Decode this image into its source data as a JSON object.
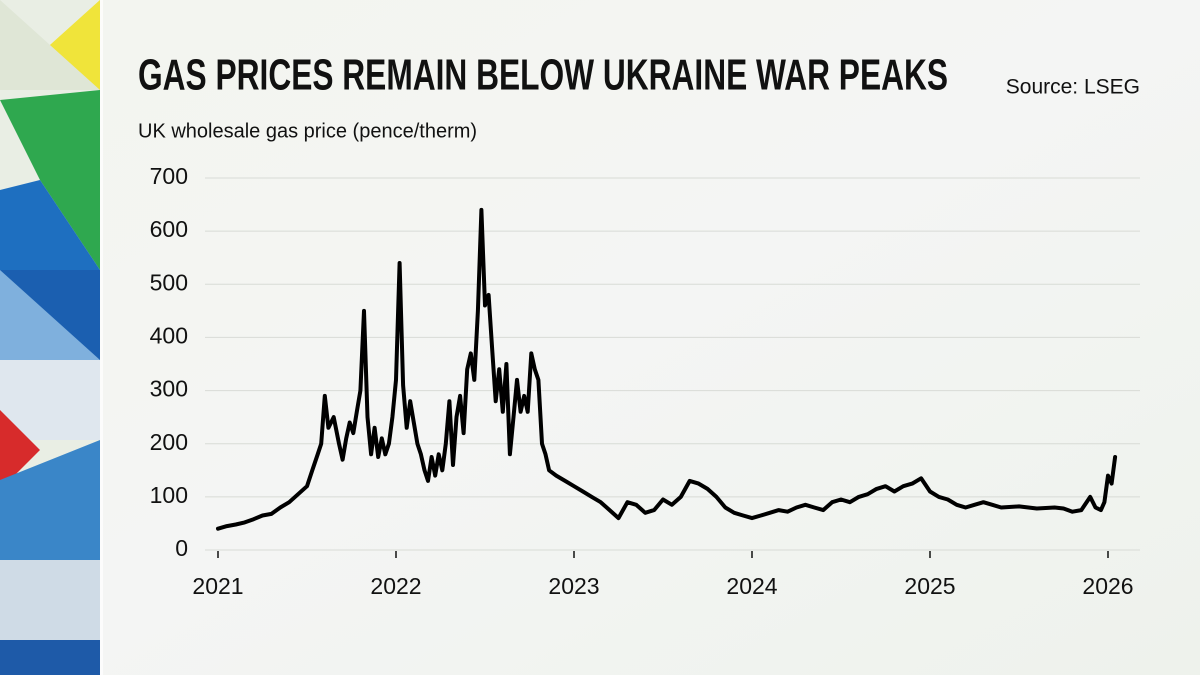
{
  "chart_data": {
    "type": "line",
    "title": "GAS PRICES REMAIN BELOW UKRAINE WAR PEAKS",
    "subtitle": "UK wholesale gas price (pence/therm)",
    "source": "Source: LSEG",
    "xlim": [
      2021,
      2026
    ],
    "xticks": [
      2021,
      2022,
      2023,
      2024,
      2025,
      2026
    ],
    "ylim": [
      0,
      700
    ],
    "yticks": [
      0,
      100,
      200,
      300,
      400,
      500,
      600,
      700
    ],
    "grid": true,
    "series": [
      {
        "color": "#000000",
        "x": [
          2021.0,
          2021.05,
          2021.1,
          2021.15,
          2021.2,
          2021.25,
          2021.3,
          2021.35,
          2021.4,
          2021.45,
          2021.5,
          2021.53,
          2021.56,
          2021.58,
          2021.6,
          2021.62,
          2021.65,
          2021.68,
          2021.7,
          2021.72,
          2021.74,
          2021.76,
          2021.78,
          2021.8,
          2021.82,
          2021.84,
          2021.86,
          2021.88,
          2021.9,
          2021.92,
          2021.94,
          2021.96,
          2021.98,
          2022.0,
          2022.02,
          2022.04,
          2022.06,
          2022.08,
          2022.1,
          2022.12,
          2022.14,
          2022.16,
          2022.18,
          2022.2,
          2022.22,
          2022.24,
          2022.26,
          2022.28,
          2022.3,
          2022.32,
          2022.34,
          2022.36,
          2022.38,
          2022.4,
          2022.42,
          2022.44,
          2022.46,
          2022.48,
          2022.5,
          2022.52,
          2022.54,
          2022.56,
          2022.58,
          2022.6,
          2022.62,
          2022.64,
          2022.66,
          2022.68,
          2022.7,
          2022.72,
          2022.74,
          2022.76,
          2022.78,
          2022.8,
          2022.82,
          2022.84,
          2022.86,
          2022.9,
          2022.95,
          2023.0,
          2023.05,
          2023.1,
          2023.15,
          2023.2,
          2023.25,
          2023.3,
          2023.35,
          2023.4,
          2023.45,
          2023.5,
          2023.55,
          2023.6,
          2023.65,
          2023.7,
          2023.75,
          2023.8,
          2023.85,
          2023.9,
          2023.95,
          2024.0,
          2024.05,
          2024.1,
          2024.15,
          2024.2,
          2024.25,
          2024.3,
          2024.35,
          2024.4,
          2024.45,
          2024.5,
          2024.55,
          2024.6,
          2024.65,
          2024.7,
          2024.75,
          2024.8,
          2024.85,
          2024.9,
          2024.95,
          2025.0,
          2025.05,
          2025.1,
          2025.15,
          2025.2,
          2025.25,
          2025.3,
          2025.35,
          2025.4,
          2025.5,
          2025.6,
          2025.7,
          2025.75,
          2025.8,
          2025.85,
          2025.9,
          2025.93,
          2025.96,
          2025.98,
          2026.0,
          2026.02,
          2026.04
        ],
        "values": [
          40,
          45,
          48,
          52,
          58,
          65,
          68,
          80,
          90,
          105,
          120,
          150,
          180,
          200,
          290,
          230,
          250,
          200,
          170,
          210,
          240,
          220,
          260,
          300,
          450,
          250,
          180,
          230,
          175,
          210,
          180,
          200,
          250,
          320,
          540,
          310,
          230,
          280,
          240,
          200,
          180,
          150,
          130,
          175,
          140,
          180,
          150,
          200,
          280,
          160,
          250,
          290,
          220,
          340,
          370,
          320,
          450,
          640,
          460,
          480,
          380,
          280,
          340,
          260,
          350,
          180,
          250,
          320,
          260,
          290,
          260,
          370,
          340,
          320,
          200,
          180,
          150,
          140,
          130,
          120,
          110,
          100,
          90,
          75,
          60,
          90,
          85,
          70,
          75,
          95,
          85,
          100,
          130,
          125,
          115,
          100,
          80,
          70,
          65,
          60,
          65,
          70,
          75,
          72,
          80,
          85,
          80,
          75,
          90,
          95,
          90,
          100,
          105,
          115,
          120,
          110,
          120,
          125,
          135,
          110,
          100,
          95,
          85,
          80,
          85,
          90,
          85,
          80,
          82,
          78,
          80,
          78,
          72,
          75,
          100,
          80,
          75,
          90,
          140,
          125,
          175
        ]
      }
    ]
  }
}
